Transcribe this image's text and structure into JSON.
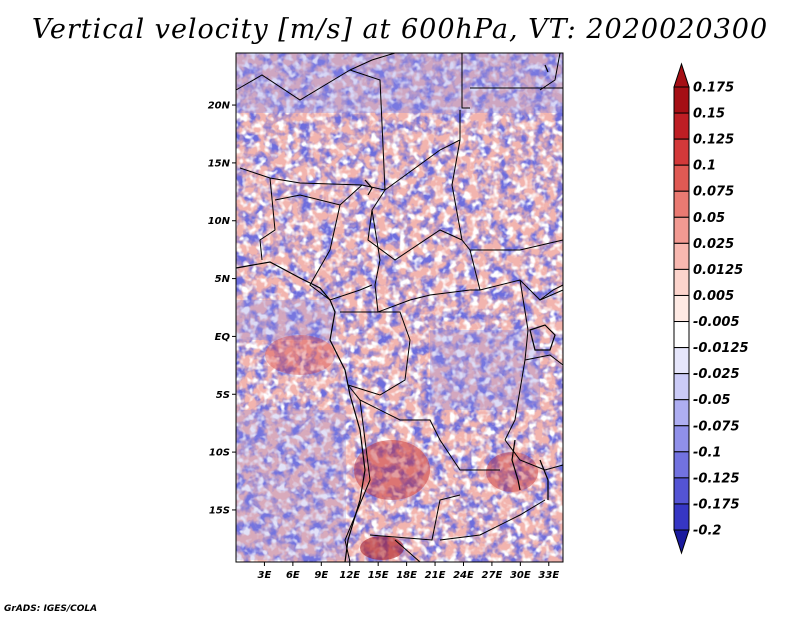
{
  "title": "Vertical velocity [m/s] at 600hPa, VT: 2020020300",
  "credit": "GrADS: IGES/COLA",
  "map": {
    "lat_range": [
      -19.5,
      24.5
    ],
    "lon_range": [
      0,
      34.5
    ],
    "lat_ticks": [
      {
        "value": 20,
        "label": "20N"
      },
      {
        "value": 15,
        "label": "15N"
      },
      {
        "value": 10,
        "label": "10N"
      },
      {
        "value": 5,
        "label": "5N"
      },
      {
        "value": 0,
        "label": "EQ"
      },
      {
        "value": -5,
        "label": "5S"
      },
      {
        "value": -10,
        "label": "10S"
      },
      {
        "value": -15,
        "label": "15S"
      }
    ],
    "lon_ticks": [
      {
        "value": 3,
        "label": "3E"
      },
      {
        "value": 6,
        "label": "6E"
      },
      {
        "value": 9,
        "label": "9E"
      },
      {
        "value": 12,
        "label": "12E"
      },
      {
        "value": 15,
        "label": "15E"
      },
      {
        "value": 18,
        "label": "18E"
      },
      {
        "value": 21,
        "label": "21E"
      },
      {
        "value": 24,
        "label": "24E"
      },
      {
        "value": 27,
        "label": "27E"
      },
      {
        "value": 30,
        "label": "30E"
      },
      {
        "value": 33,
        "label": "33E"
      }
    ]
  },
  "colorbar": {
    "levels": [
      {
        "label": "0.175",
        "color": "#a50f15"
      },
      {
        "label": "0.15",
        "color": "#be1e24"
      },
      {
        "label": "0.125",
        "color": "#d3393a"
      },
      {
        "label": "0.1",
        "color": "#e05a54"
      },
      {
        "label": "0.075",
        "color": "#ea7a72"
      },
      {
        "label": "0.05",
        "color": "#f29a92"
      },
      {
        "label": "0.025",
        "color": "#f8b8b0"
      },
      {
        "label": "0.0125",
        "color": "#fcd4cc"
      },
      {
        "label": "0.005",
        "color": "#feeae4"
      },
      {
        "label": "-0.005",
        "color": "#ffffff"
      },
      {
        "label": "-0.0125",
        "color": "#e6e6fb"
      },
      {
        "label": "-0.025",
        "color": "#cbcbf7"
      },
      {
        "label": "-0.05",
        "color": "#aeaef2"
      },
      {
        "label": "-0.075",
        "color": "#9090ea"
      },
      {
        "label": "-0.1",
        "color": "#7272e0"
      },
      {
        "label": "-0.125",
        "color": "#5454d4"
      },
      {
        "label": "-0.175",
        "color": "#3636c4"
      },
      {
        "label": "-0.2",
        "color": "#1e1eae"
      }
    ],
    "top_triangle_color": "#a50f15",
    "bottom_triangle_color": "#1a1a9e"
  }
}
